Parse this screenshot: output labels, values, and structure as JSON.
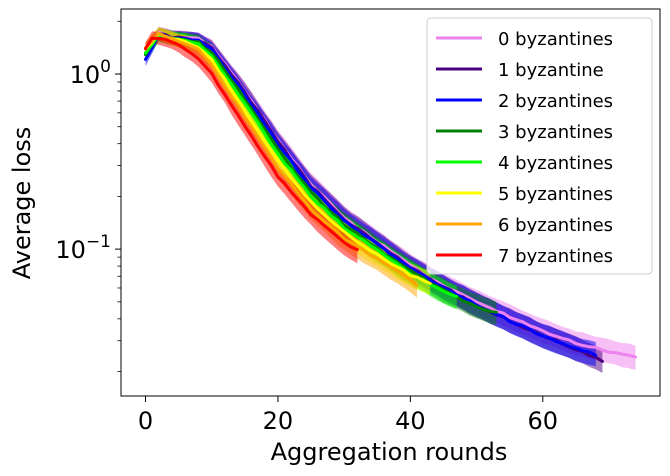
{
  "chart_data": {
    "type": "line",
    "title": "",
    "xlabel": "Aggregation rounds",
    "ylabel": "Average loss",
    "yscale": "log",
    "xlim": [
      -3.7,
      77.7
    ],
    "ylim": [
      0.0145,
      2.35
    ],
    "grid": false,
    "legend_position": "top-right",
    "x_ticks": [
      0,
      20,
      40,
      60
    ],
    "x_tick_labels": [
      "0",
      "20",
      "40",
      "60"
    ],
    "y_major_ticks": [
      {
        "value": 1.0,
        "base": "10",
        "exponent": "0"
      },
      {
        "value": 0.1,
        "base": "10",
        "exponent": "−1"
      }
    ],
    "series": [
      {
        "name": "0 byzantines",
        "color": "#ee82ee",
        "last_round": 74,
        "points": [
          [
            0,
            1.3
          ],
          [
            2,
            1.72
          ],
          [
            4,
            1.62
          ],
          [
            6,
            1.6
          ],
          [
            8,
            1.58
          ],
          [
            10,
            1.42
          ],
          [
            15,
            0.8
          ],
          [
            20,
            0.42
          ],
          [
            25,
            0.235
          ],
          [
            30,
            0.15
          ],
          [
            35,
            0.11
          ],
          [
            40,
            0.08
          ],
          [
            45,
            0.062
          ],
          [
            50,
            0.05
          ],
          [
            55,
            0.041
          ],
          [
            60,
            0.034
          ],
          [
            65,
            0.029
          ],
          [
            70,
            0.026
          ],
          [
            74,
            0.024
          ]
        ]
      },
      {
        "name": "1 byzantine",
        "color": "#4b0082",
        "last_round": 69,
        "points": [
          [
            0,
            1.3
          ],
          [
            2,
            1.7
          ],
          [
            4,
            1.62
          ],
          [
            6,
            1.6
          ],
          [
            8,
            1.56
          ],
          [
            10,
            1.4
          ],
          [
            15,
            0.79
          ],
          [
            20,
            0.41
          ],
          [
            25,
            0.23
          ],
          [
            30,
            0.148
          ],
          [
            35,
            0.108
          ],
          [
            40,
            0.079
          ],
          [
            45,
            0.061
          ],
          [
            50,
            0.048
          ],
          [
            55,
            0.039
          ],
          [
            60,
            0.032
          ],
          [
            65,
            0.027
          ],
          [
            69,
            0.023
          ]
        ]
      },
      {
        "name": "2 byzantines",
        "color": "#0000ff",
        "last_round": 68,
        "points": [
          [
            0,
            1.2
          ],
          [
            2,
            1.68
          ],
          [
            4,
            1.6
          ],
          [
            6,
            1.58
          ],
          [
            8,
            1.55
          ],
          [
            10,
            1.38
          ],
          [
            15,
            0.76
          ],
          [
            20,
            0.4
          ],
          [
            25,
            0.225
          ],
          [
            30,
            0.145
          ],
          [
            35,
            0.106
          ],
          [
            40,
            0.078
          ],
          [
            45,
            0.06
          ],
          [
            50,
            0.048
          ],
          [
            55,
            0.039
          ],
          [
            60,
            0.032
          ],
          [
            65,
            0.027
          ],
          [
            68,
            0.025
          ]
        ]
      },
      {
        "name": "3 byzantines",
        "color": "#008000",
        "last_round": 53,
        "points": [
          [
            0,
            1.3
          ],
          [
            2,
            1.68
          ],
          [
            4,
            1.6
          ],
          [
            6,
            1.58
          ],
          [
            8,
            1.52
          ],
          [
            10,
            1.33
          ],
          [
            15,
            0.72
          ],
          [
            20,
            0.37
          ],
          [
            25,
            0.21
          ],
          [
            30,
            0.138
          ],
          [
            35,
            0.101
          ],
          [
            40,
            0.075
          ],
          [
            45,
            0.058
          ],
          [
            50,
            0.047
          ],
          [
            53,
            0.043
          ]
        ]
      },
      {
        "name": "4 byzantines",
        "color": "#00ff00",
        "last_round": 47,
        "points": [
          [
            0,
            1.3
          ],
          [
            2,
            1.66
          ],
          [
            4,
            1.6
          ],
          [
            6,
            1.56
          ],
          [
            8,
            1.48
          ],
          [
            10,
            1.28
          ],
          [
            15,
            0.68
          ],
          [
            20,
            0.35
          ],
          [
            25,
            0.2
          ],
          [
            30,
            0.133
          ],
          [
            35,
            0.098
          ],
          [
            40,
            0.073
          ],
          [
            45,
            0.057
          ],
          [
            47,
            0.053
          ]
        ]
      },
      {
        "name": "5 byzantines",
        "color": "#ffff00",
        "last_round": 43,
        "points": [
          [
            0,
            1.4
          ],
          [
            2,
            1.7
          ],
          [
            4,
            1.6
          ],
          [
            6,
            1.52
          ],
          [
            8,
            1.42
          ],
          [
            10,
            1.2
          ],
          [
            15,
            0.62
          ],
          [
            20,
            0.32
          ],
          [
            25,
            0.185
          ],
          [
            30,
            0.125
          ],
          [
            35,
            0.093
          ],
          [
            40,
            0.071
          ],
          [
            43,
            0.064
          ]
        ]
      },
      {
        "name": "6 byzantines",
        "color": "#ffa500",
        "last_round": 41,
        "points": [
          [
            0,
            1.4
          ],
          [
            2,
            1.7
          ],
          [
            4,
            1.6
          ],
          [
            6,
            1.5
          ],
          [
            8,
            1.38
          ],
          [
            10,
            1.12
          ],
          [
            15,
            0.57
          ],
          [
            20,
            0.29
          ],
          [
            25,
            0.17
          ],
          [
            30,
            0.115
          ],
          [
            35,
            0.088
          ],
          [
            38,
            0.075
          ],
          [
            41,
            0.062
          ]
        ]
      },
      {
        "name": "7 byzantines",
        "color": "#ff0000",
        "last_round": 32,
        "points": [
          [
            0,
            1.4
          ],
          [
            1,
            1.62
          ],
          [
            3,
            1.56
          ],
          [
            5,
            1.46
          ],
          [
            8,
            1.22
          ],
          [
            10,
            1.0
          ],
          [
            15,
            0.5
          ],
          [
            20,
            0.26
          ],
          [
            25,
            0.158
          ],
          [
            28,
            0.125
          ],
          [
            30,
            0.108
          ],
          [
            32,
            0.098
          ]
        ]
      }
    ]
  }
}
